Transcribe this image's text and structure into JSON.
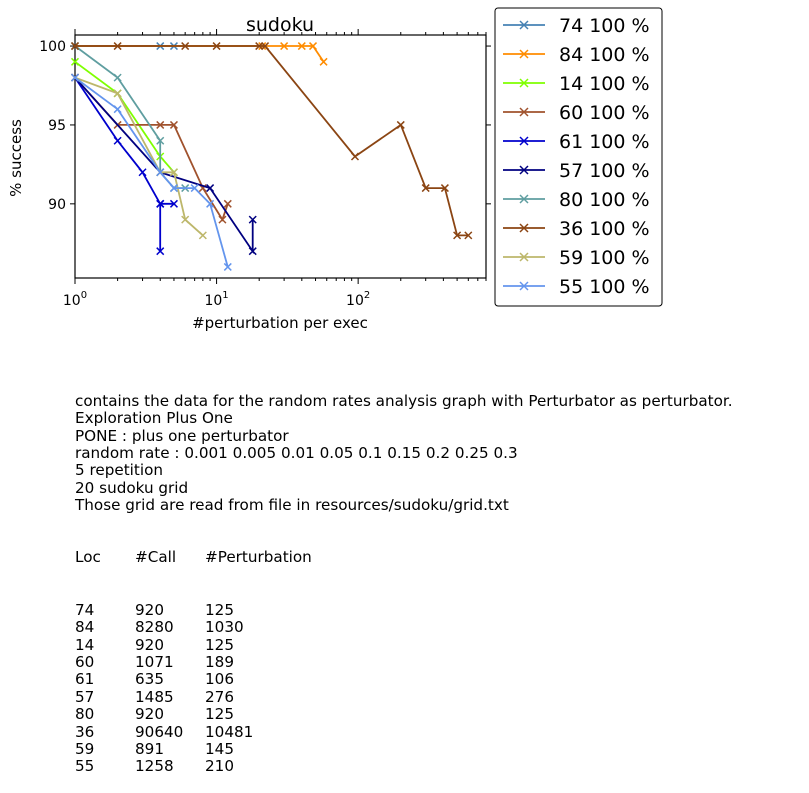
{
  "chart_data": {
    "type": "line",
    "title": "sudoku",
    "xlabel": "#perturbation per exec",
    "ylabel": "% success",
    "xscale": "log",
    "xlim": [
      1,
      800
    ],
    "ylim": [
      85.3,
      100.7
    ],
    "xticks": [
      1,
      10,
      100
    ],
    "xtick_labels": [
      "10^0",
      "10^1",
      "10^2"
    ],
    "yticks": [
      90,
      95,
      100
    ],
    "ytick_labels": [
      "90",
      "95",
      "100"
    ],
    "legend_position": "outside-right",
    "marker": "x",
    "series": [
      {
        "name": "74 100 %",
        "color": "#4682b4",
        "x": [
          1,
          4,
          5
        ],
        "y": [
          100,
          100,
          100
        ]
      },
      {
        "name": "84 100 %",
        "color": "#ff8c00",
        "x": [
          1,
          21,
          30,
          40,
          48,
          57
        ],
        "y": [
          100,
          100,
          100,
          100,
          100,
          99
        ]
      },
      {
        "name": "14 100 %",
        "color": "#7fff00",
        "x": [
          1,
          2,
          4,
          5
        ],
        "y": [
          99,
          97,
          93,
          92
        ]
      },
      {
        "name": "60 100 %",
        "color": "#a0522d",
        "x": [
          1,
          2,
          4,
          5,
          8,
          11,
          12
        ],
        "y": [
          98,
          95,
          95,
          95,
          91,
          89,
          90
        ]
      },
      {
        "name": "61 100 %",
        "color": "#0000cd",
        "x": [
          1,
          2,
          3,
          4,
          4,
          4,
          5
        ],
        "y": [
          98,
          94,
          92,
          90,
          87,
          90,
          90
        ]
      },
      {
        "name": "57 100 %",
        "color": "#000080",
        "x": [
          1,
          4,
          9,
          18,
          18
        ],
        "y": [
          98,
          92,
          91,
          87,
          89
        ]
      },
      {
        "name": "80 100 %",
        "color": "#5f9ea0",
        "x": [
          1,
          2,
          4,
          4,
          5,
          6
        ],
        "y": [
          100,
          98,
          94,
          92,
          91,
          91
        ]
      },
      {
        "name": "36 100 %",
        "color": "#8b4513",
        "x": [
          1,
          2,
          6,
          10,
          20,
          22,
          95,
          200,
          300,
          410,
          500,
          600
        ],
        "y": [
          100,
          100,
          100,
          100,
          100,
          100,
          93,
          95,
          91,
          91,
          88,
          88
        ]
      },
      {
        "name": "59 100 %",
        "color": "#bdb76b",
        "x": [
          1,
          2,
          4,
          5,
          6,
          8
        ],
        "y": [
          98,
          97,
          92,
          92,
          89,
          88
        ]
      },
      {
        "name": "55 100 %",
        "color": "#6495ed",
        "x": [
          1,
          2,
          4,
          5,
          7,
          9,
          12
        ],
        "y": [
          98,
          96,
          92,
          91,
          91,
          90,
          86
        ]
      }
    ]
  },
  "notes": {
    "lines": [
      "contains the data for the random rates analysis graph with Perturbator as perturbator.",
      "Exploration Plus One",
      "PONE : plus one perturbator",
      "random rate : 0.001 0.005 0.01 0.05 0.1 0.15 0.2 0.25 0.3",
      "5 repetition",
      "20 sudoku grid",
      "Those grid are read from file in resources/sudoku/grid.txt"
    ],
    "table_header": [
      "Loc",
      "#Call",
      "#Perturbation"
    ],
    "table_rows": [
      [
        "74",
        "920",
        "125"
      ],
      [
        "84",
        "8280",
        "1030"
      ],
      [
        "14",
        "920",
        "125"
      ],
      [
        "60",
        "1071",
        "189"
      ],
      [
        "61",
        "635",
        "106"
      ],
      [
        "57",
        "1485",
        "276"
      ],
      [
        "80",
        "920",
        "125"
      ],
      [
        "36",
        "90640",
        "10481"
      ],
      [
        "59",
        "891",
        "145"
      ],
      [
        "55",
        "1258",
        "210"
      ]
    ]
  }
}
